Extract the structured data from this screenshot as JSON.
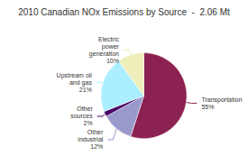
{
  "chart_data": {
    "type": "pie",
    "title": "2010 Canadian NOx Emissions by Source  -  2.06 Mt",
    "categories": [
      "Transportation",
      "Other\nindustrial",
      "Other\nsources",
      "Upstream oil\nand gas",
      "Electric\npower\ngeneration"
    ],
    "values": [
      55,
      12,
      2,
      21,
      10
    ],
    "value_labels": [
      "55%",
      "12%",
      "2%",
      "21%",
      "10%"
    ],
    "colors": [
      "#8B2252",
      "#9999CC",
      "#4B0060",
      "#AAEEFF",
      "#EEEEBB"
    ],
    "data_labels": true
  }
}
